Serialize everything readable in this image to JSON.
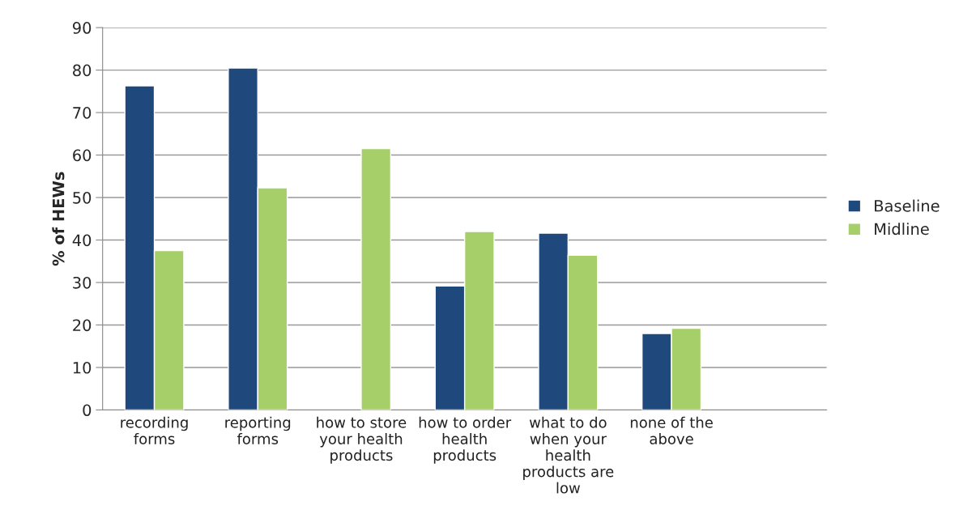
{
  "chart_data": {
    "type": "bar",
    "ylabel": "% of HEWs",
    "categories": [
      "recording\nforms",
      "reporting\nforms",
      "how to store\nyour health\nproducts",
      "how to order\nhealth\nproducts",
      "what to do\nwhen your\nhealth\nproducts are\nlow",
      "none of the\nabove",
      null
    ],
    "series": [
      {
        "name": "Baseline",
        "color": "#1f497d",
        "values": [
          76.3,
          80.5,
          null,
          29.2,
          41.6,
          18.0,
          null
        ]
      },
      {
        "name": "Midline",
        "color": "#a6cf6a",
        "values": [
          37.5,
          52.3,
          61.5,
          42.0,
          36.4,
          19.2,
          null
        ]
      }
    ],
    "ylim": [
      0,
      90
    ],
    "yticks": [
      0,
      10,
      20,
      30,
      40,
      50,
      60,
      70,
      80,
      90
    ],
    "grid": "y",
    "legend": "right"
  }
}
